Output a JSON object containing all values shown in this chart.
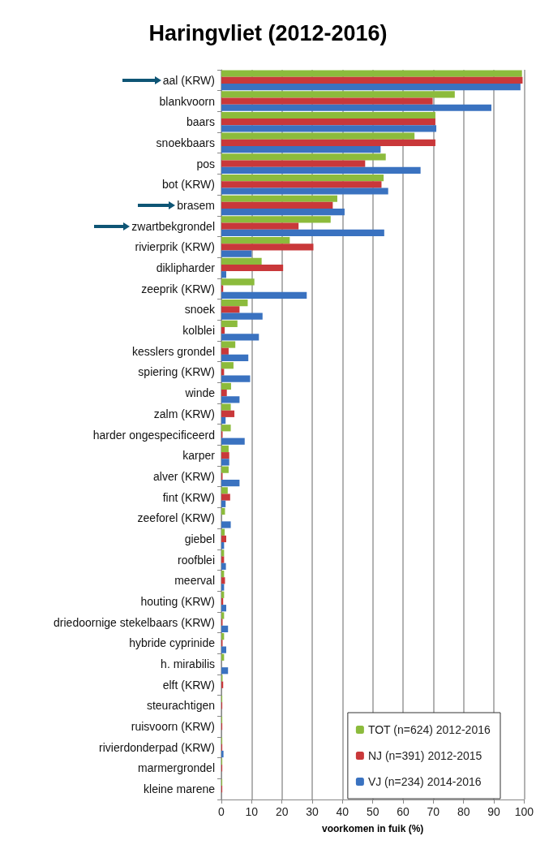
{
  "chart_data": {
    "type": "bar",
    "orientation": "horizontal",
    "title": "Haringvliet (2012-2016)",
    "xlabel": "voorkomen in fuik (%)",
    "categories": [
      "aal (KRW)",
      "blankvoorn",
      "baars",
      "snoekbaars",
      "pos",
      "bot (KRW)",
      "brasem",
      "zwartbekgrondel",
      "rivierprik (KRW)",
      "diklipharder",
      "zeeprik (KRW)",
      "snoek",
      "kolblei",
      "kesslers grondel",
      "spiering (KRW)",
      "winde",
      "zalm (KRW)",
      "harder ongespecificeerd",
      "karper",
      "alver (KRW)",
      "fint (KRW)",
      "zeeforel (KRW)",
      "giebel",
      "roofblei",
      "meerval",
      "houting (KRW)",
      "driedoornige stekelbaars (KRW)",
      "hybride cyprinide",
      "h. mirabilis",
      "elft (KRW)",
      "steurachtigen",
      "ruisvoorn (KRW)",
      "rivierdonderpad (KRW)",
      "marmergrondel",
      "kleine marene"
    ],
    "series": [
      {
        "name": "TOT (n=624) 2012-2016",
        "color": "#8cbb3c",
        "values": [
          99.3,
          77.1,
          70.7,
          63.8,
          54.3,
          53.6,
          38.3,
          36.1,
          22.6,
          13.3,
          10.9,
          8.7,
          5.3,
          4.6,
          4.0,
          3.2,
          3.1,
          3.1,
          2.4,
          2.4,
          2.1,
          1.2,
          1.1,
          0.9,
          0.9,
          0.9,
          0.9,
          0.9,
          0.9,
          0.4,
          0.3,
          0.3,
          0.3,
          0.3,
          0.3
        ]
      },
      {
        "name": "NJ (n=391) 2012-2015",
        "color": "#c9383a",
        "values": [
          99.5,
          69.8,
          70.7,
          70.7,
          47.5,
          52.9,
          36.8,
          25.5,
          30.4,
          20.4,
          0.6,
          6.0,
          1.1,
          2.4,
          0.9,
          1.8,
          4.3,
          0.4,
          2.6,
          0.4,
          2.9,
          0,
          1.6,
          0.9,
          1.2,
          0.6,
          0.4,
          0.4,
          0,
          0.6,
          0.3,
          0.3,
          0.3,
          0.3,
          0.3
        ]
      },
      {
        "name": "VJ (n=234) 2014-2016",
        "color": "#3a72c0",
        "values": [
          98.8,
          89.2,
          71.0,
          52.6,
          65.8,
          55.1,
          40.7,
          53.8,
          10.0,
          1.6,
          28.2,
          13.6,
          12.4,
          8.9,
          9.5,
          6.0,
          1.4,
          7.7,
          2.6,
          6.0,
          1.4,
          3.1,
          0.9,
          1.5,
          0.9,
          1.6,
          2.2,
          1.6,
          2.2,
          0,
          0,
          0,
          0.7,
          0,
          0
        ]
      }
    ],
    "xlim": [
      0,
      100
    ],
    "xticks": [
      0,
      10,
      20,
      30,
      40,
      50,
      60,
      70,
      80,
      90,
      100
    ],
    "grid": "x",
    "legend": "bottom right"
  }
}
